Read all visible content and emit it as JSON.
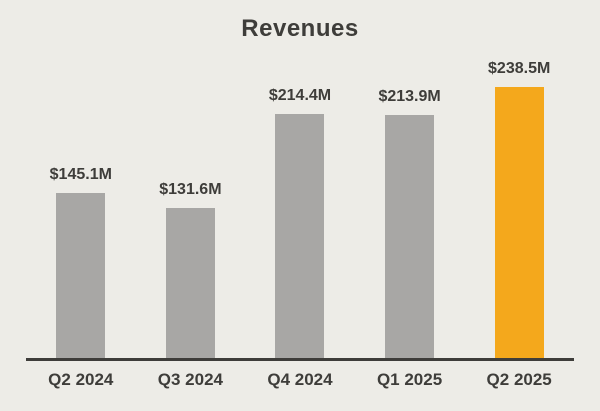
{
  "chart_data": {
    "type": "bar",
    "title": "Revenues",
    "categories": [
      "Q2 2024",
      "Q3 2024",
      "Q4 2024",
      "Q1 2025",
      "Q2 2025"
    ],
    "values": [
      145.1,
      131.6,
      214.4,
      213.9,
      238.5
    ],
    "value_labels": [
      "$145.1M",
      "$131.6M",
      "$214.4M",
      "$213.9M",
      "$238.5M"
    ],
    "xlabel": "",
    "ylabel": "",
    "ylim": [
      0,
      260
    ],
    "grid": false,
    "legend": false,
    "highlight_index": 4,
    "colors": {
      "background": "#edece7",
      "bar_default": "#a8a7a5",
      "bar_highlight": "#f4a81c",
      "text": "#3e3d3a",
      "axis_line": "#3e3d3a"
    }
  }
}
